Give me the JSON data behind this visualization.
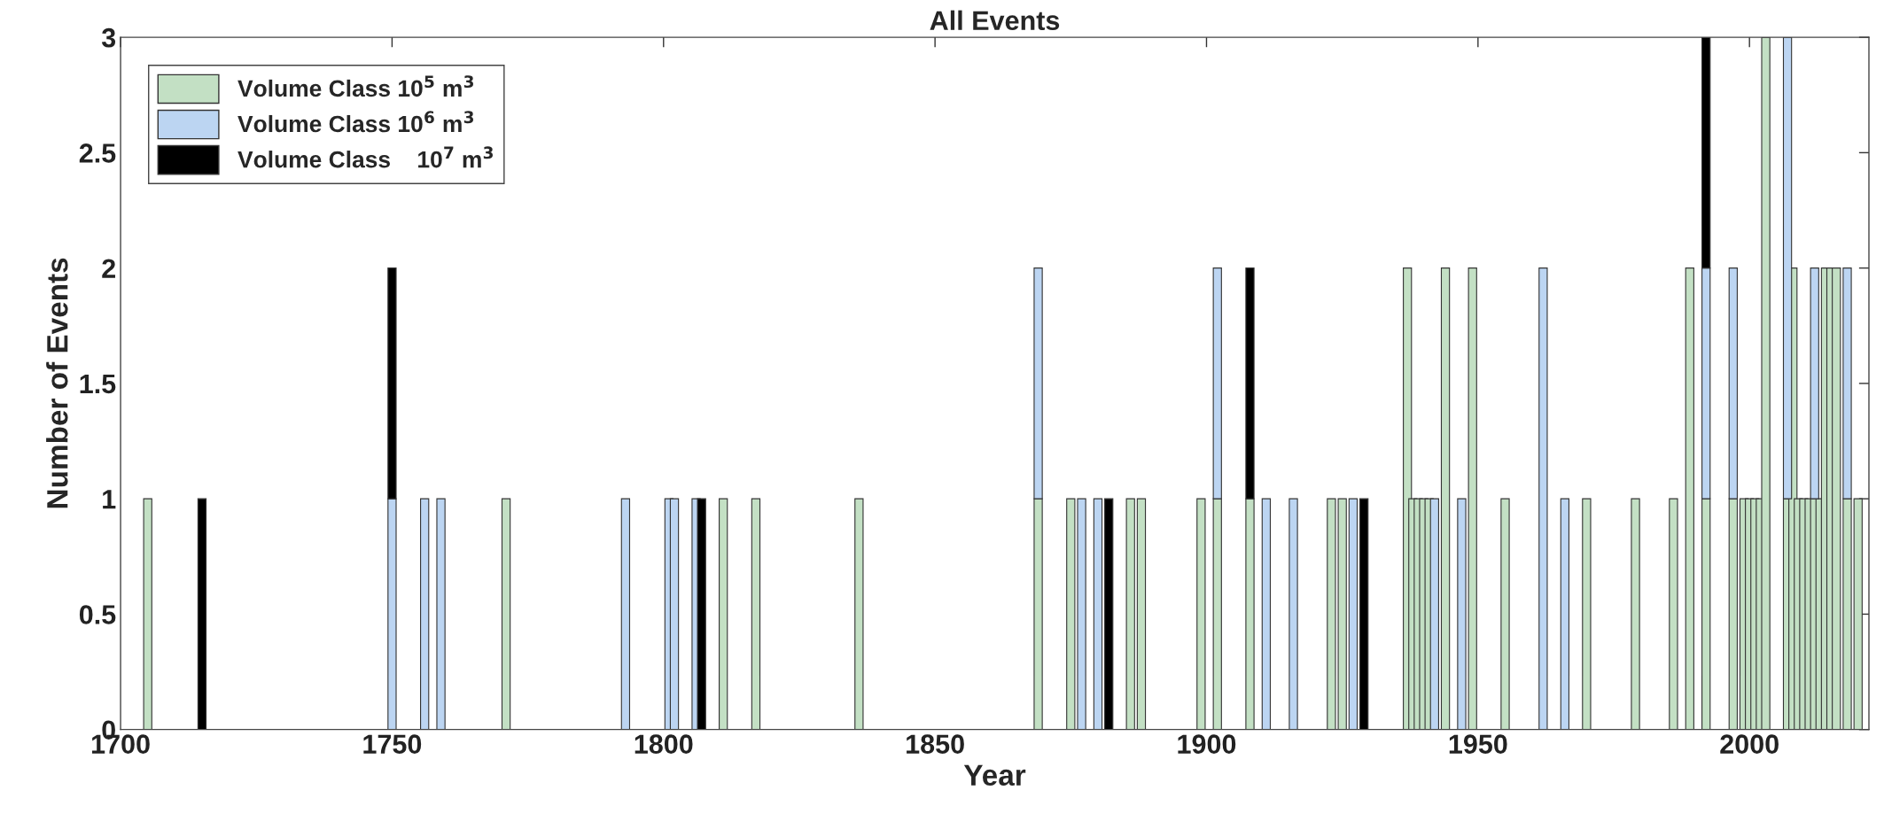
{
  "chart_data": {
    "type": "bar",
    "title": "All Events",
    "xlabel": "Year",
    "ylabel": "Number of Events",
    "stacked": true,
    "x": [
      1705,
      1715,
      1750,
      1756,
      1759,
      1771,
      1793,
      1801,
      1802,
      1806,
      1807,
      1811,
      1817,
      1836,
      1869,
      1875,
      1877,
      1880,
      1882,
      1886,
      1888,
      1899,
      1902,
      1908,
      1911,
      1916,
      1923,
      1925,
      1927,
      1929,
      1937,
      1938,
      1939,
      1940,
      1941,
      1942,
      1944,
      1947,
      1949,
      1955,
      1962,
      1966,
      1970,
      1979,
      1986,
      1989,
      1992,
      1997,
      1999,
      2000,
      2001,
      2002,
      2003,
      2007,
      2008,
      2009,
      2010,
      2011,
      2012,
      2013,
      2014,
      2015,
      2016,
      2018,
      2020
    ],
    "series": [
      {
        "name": "Volume Class 10$^{5}$ m$^{3}$",
        "color": "#c3e0c4",
        "values": [
          1,
          null,
          null,
          null,
          null,
          1,
          null,
          null,
          null,
          null,
          null,
          1,
          1,
          1,
          1,
          1,
          null,
          null,
          null,
          1,
          1,
          1,
          1,
          1,
          null,
          null,
          1,
          1,
          null,
          null,
          2,
          1,
          1,
          1,
          1,
          null,
          2,
          null,
          2,
          1,
          null,
          null,
          1,
          1,
          1,
          2,
          1,
          1,
          1,
          1,
          1,
          1,
          3,
          1,
          2,
          1,
          1,
          1,
          1,
          1,
          2,
          2,
          2,
          1,
          1
        ]
      },
      {
        "name": "Volume Class 10$^{6}$ m$^{3}$",
        "color": "#bcd5f2",
        "values": [
          null,
          null,
          1,
          1,
          1,
          null,
          1,
          1,
          1,
          1,
          null,
          null,
          null,
          null,
          1,
          null,
          1,
          1,
          null,
          null,
          null,
          null,
          1,
          null,
          1,
          1,
          null,
          null,
          1,
          null,
          null,
          null,
          null,
          null,
          null,
          1,
          null,
          1,
          null,
          null,
          2,
          1,
          null,
          null,
          null,
          null,
          1,
          1,
          null,
          null,
          null,
          null,
          null,
          2,
          null,
          null,
          null,
          null,
          1,
          null,
          null,
          null,
          null,
          1,
          null
        ]
      },
      {
        "name": "Volume Class    10$^{7}$ m$^{3}$",
        "color": "#000000",
        "values": [
          null,
          1,
          1,
          null,
          null,
          null,
          null,
          null,
          null,
          null,
          1,
          null,
          null,
          null,
          null,
          null,
          null,
          null,
          1,
          null,
          null,
          null,
          null,
          1,
          null,
          null,
          null,
          null,
          null,
          1,
          null,
          null,
          null,
          null,
          null,
          null,
          null,
          null,
          null,
          null,
          null,
          null,
          null,
          null,
          null,
          null,
          1,
          null,
          null,
          null,
          null,
          null,
          null,
          null,
          null,
          null,
          null,
          null,
          null,
          null,
          null,
          null,
          null,
          null,
          null
        ]
      }
    ],
    "xlim": [
      1700,
      2022
    ],
    "xticks": [
      1700,
      1750,
      1800,
      1850,
      1900,
      1950,
      2000
    ],
    "ylim": [
      0,
      3
    ],
    "yticks": [
      0,
      0.5,
      1,
      1.5,
      2,
      2.5,
      3
    ],
    "grid": false,
    "legend": "top left"
  }
}
